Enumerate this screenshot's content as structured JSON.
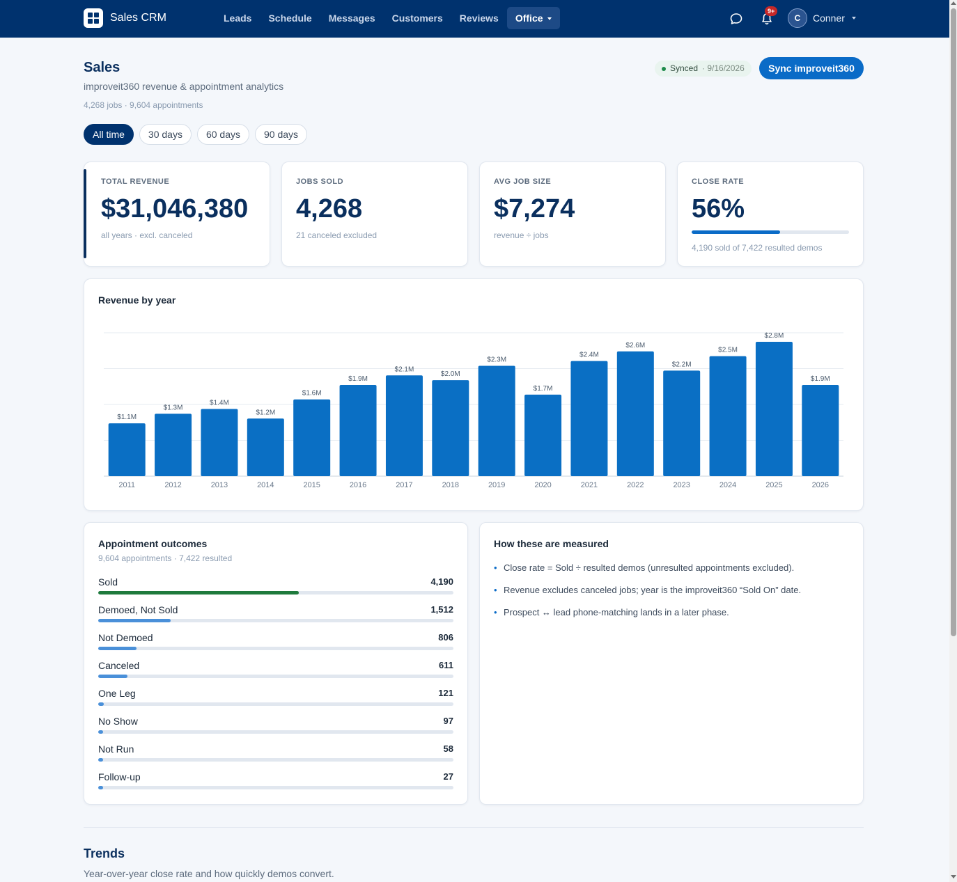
{
  "brand": {
    "name": "Sales CRM",
    "logo_icon": "grid-logo-icon"
  },
  "nav": {
    "items": [
      {
        "label": "Leads"
      },
      {
        "label": "Schedule"
      },
      {
        "label": "Messages"
      },
      {
        "label": "Customers"
      },
      {
        "label": "Reviews"
      },
      {
        "label": "Office",
        "active": true,
        "dropdown": true
      }
    ]
  },
  "topbar": {
    "notifications_badge": "9+",
    "avatar_initial": "C",
    "user_name": "Conner"
  },
  "header": {
    "title": "Sales",
    "subtitle": "improveit360 revenue & appointment analytics",
    "meta": "4,268 jobs · 9,604 appointments",
    "synced_label": "Synced",
    "synced_date": "· 9/16/2026",
    "sync_button": "Sync improveit360"
  },
  "filters": [
    {
      "label": "All time",
      "active": true
    },
    {
      "label": "30 days"
    },
    {
      "label": "60 days"
    },
    {
      "label": "90 days"
    }
  ],
  "kpis": {
    "revenue": {
      "label": "TOTAL REVENUE",
      "value": "$31,046,380",
      "note": "all years · excl. canceled"
    },
    "jobs": {
      "label": "JOBS SOLD",
      "value": "4,268",
      "note": "21 canceled excluded"
    },
    "avg": {
      "label": "AVG JOB SIZE",
      "value": "$7,274",
      "note": "revenue ÷ jobs"
    },
    "close": {
      "label": "CLOSE RATE",
      "value": "56%",
      "note": "4,190 sold of 7,422 resulted demos",
      "fraction": 0.56
    }
  },
  "revenue_chart": {
    "title": "Revenue by year"
  },
  "chart_data": {
    "type": "bar",
    "title": "Revenue by year",
    "categories": [
      "2011",
      "2012",
      "2013",
      "2014",
      "2015",
      "2016",
      "2017",
      "2018",
      "2019",
      "2020",
      "2021",
      "2022",
      "2023",
      "2024",
      "2025",
      "2026"
    ],
    "values": [
      1.1,
      1.3,
      1.4,
      1.2,
      1.6,
      1.9,
      2.1,
      2.0,
      2.3,
      1.7,
      2.4,
      2.6,
      2.2,
      2.5,
      2.8,
      1.9
    ],
    "value_labels": [
      "$1.1M",
      "$1.3M",
      "$1.4M",
      "$1.2M",
      "$1.6M",
      "$1.9M",
      "$2.1M",
      "$2.0M",
      "$2.3M",
      "$1.7M",
      "$2.4M",
      "$2.6M",
      "$2.2M",
      "$2.5M",
      "$2.8M",
      "$1.9M"
    ],
    "unit": "$M",
    "ylim": [
      0,
      2.8
    ],
    "grid": true,
    "bar_color": "#0a6fc4"
  },
  "outcomes": {
    "title": "Appointment outcomes",
    "subtitle": "9,604 appointments · 7,422 resulted",
    "items": [
      {
        "name": "Sold",
        "value": "4,190",
        "count": 4190,
        "color": "#1e7a3c"
      },
      {
        "name": "Demoed, Not Sold",
        "value": "1,512",
        "count": 1512,
        "color": "#4a90d9"
      },
      {
        "name": "Not Demoed",
        "value": "806",
        "count": 806,
        "color": "#4a90d9"
      },
      {
        "name": "Canceled",
        "value": "611",
        "count": 611,
        "color": "#4a90d9"
      },
      {
        "name": "One Leg",
        "value": "121",
        "count": 121,
        "color": "#4a90d9"
      },
      {
        "name": "No Show",
        "value": "97",
        "count": 97,
        "color": "#4a90d9"
      },
      {
        "name": "Not Run",
        "value": "58",
        "count": 58,
        "color": "#4a90d9"
      },
      {
        "name": "Follow-up",
        "value": "27",
        "count": 27,
        "color": "#4a90d9"
      }
    ],
    "max_count": 7422
  },
  "measured": {
    "title": "How these are measured",
    "items": [
      "Close rate = Sold ÷ resulted demos (unresulted appointments excluded).",
      "Revenue excludes canceled jobs; year is the improveit360 “Sold On” date.",
      "Prospect ↔ lead phone-matching lands in a later phase."
    ]
  },
  "trends": {
    "title": "Trends",
    "subtitle": "Year-over-year close rate and how quickly demos convert."
  }
}
